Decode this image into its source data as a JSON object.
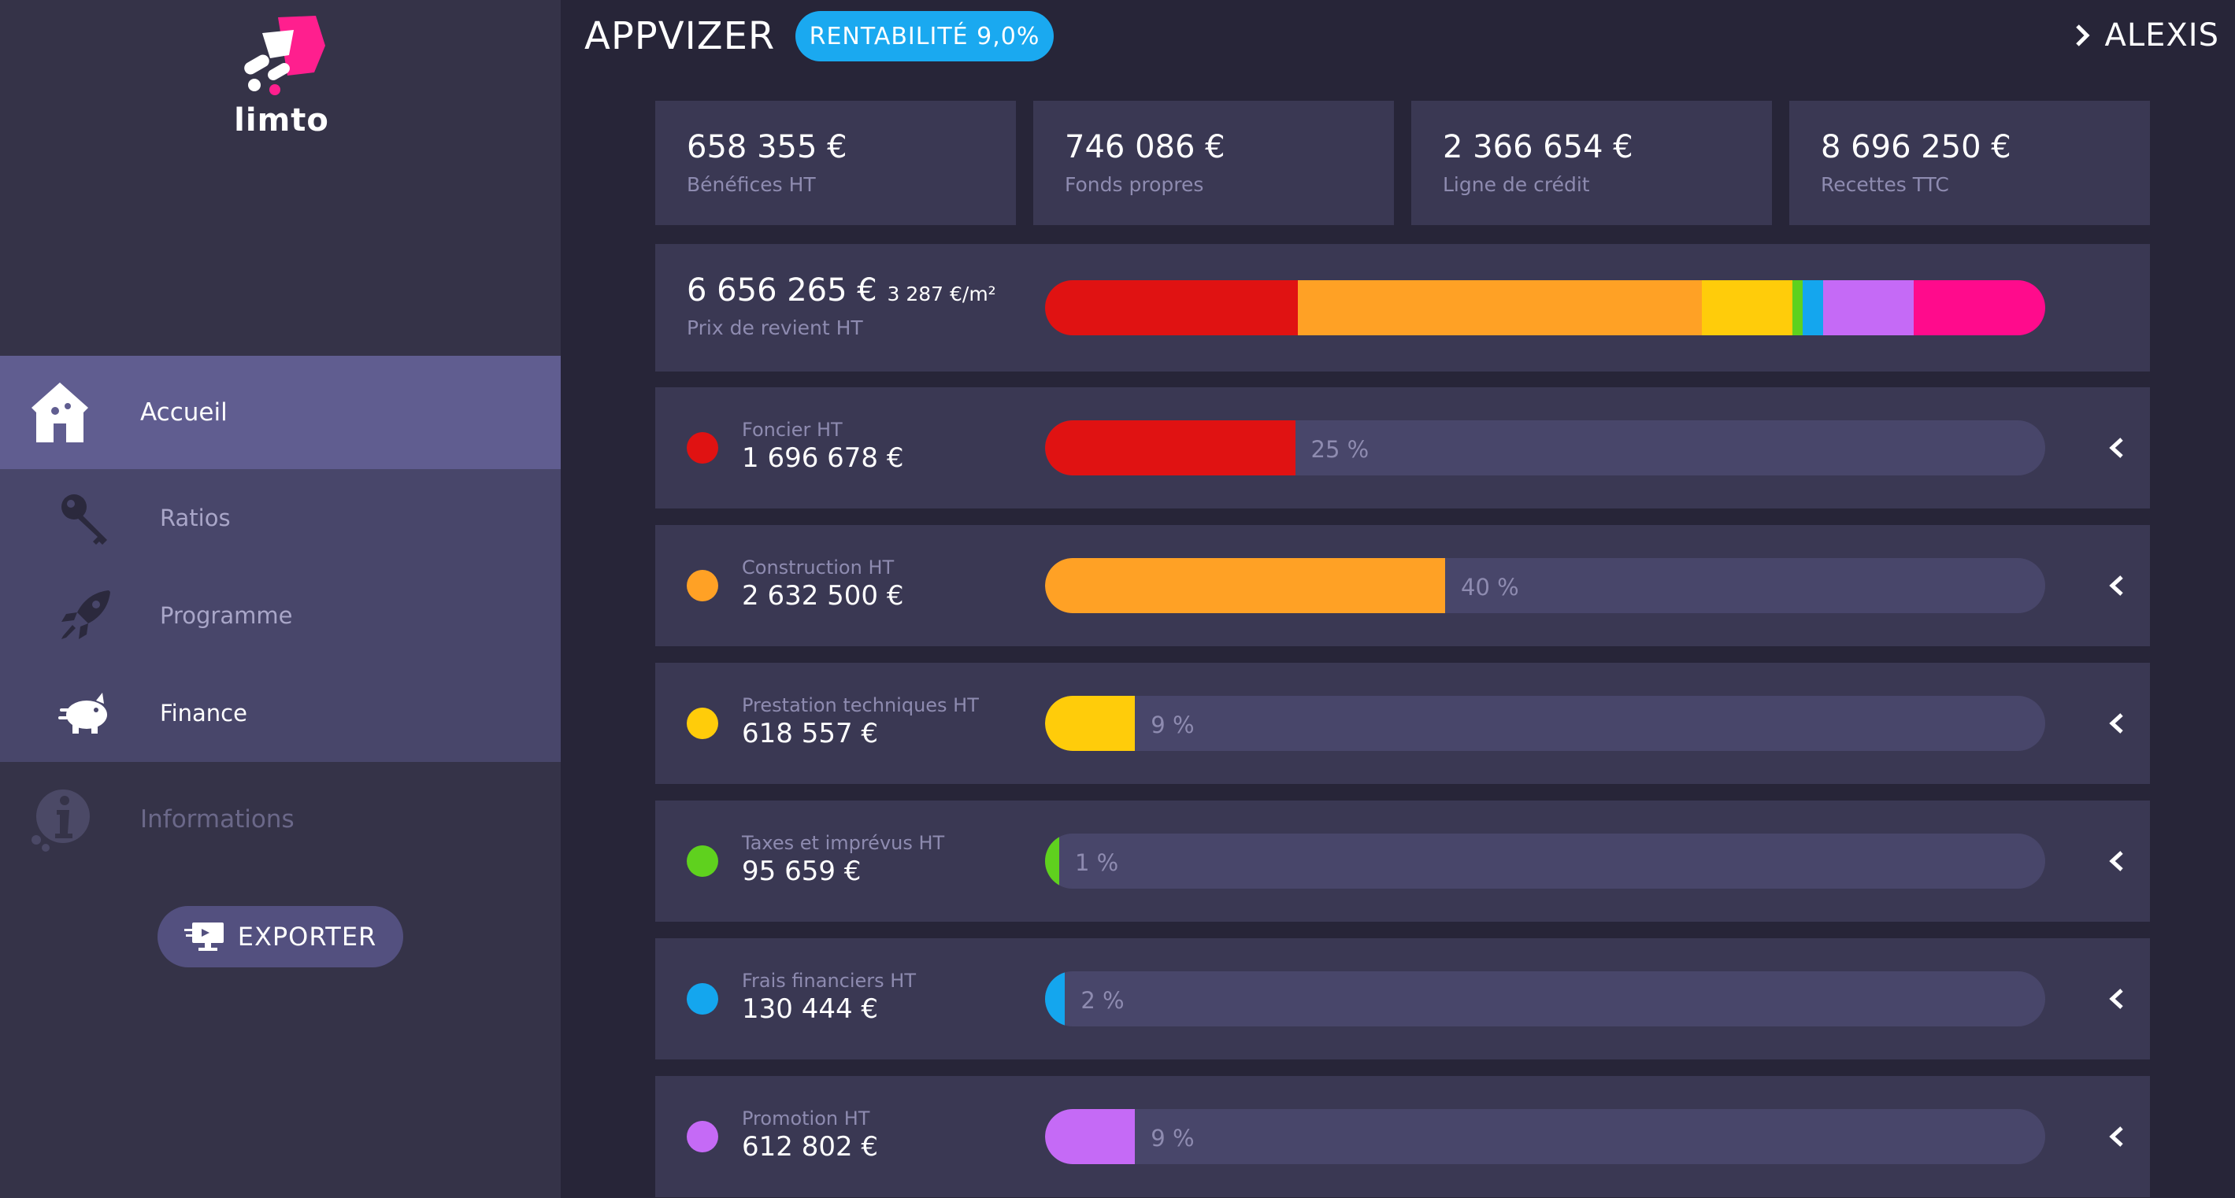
{
  "brand": {
    "logo_text": "limto"
  },
  "sidebar": {
    "items": [
      {
        "label": "Accueil",
        "icon": "home-icon"
      },
      {
        "label": "Ratios",
        "icon": "key-icon"
      },
      {
        "label": "Programme",
        "icon": "rocket-icon"
      },
      {
        "label": "Finance",
        "icon": "piggy-bank-icon"
      },
      {
        "label": "Informations",
        "icon": "info-icon"
      }
    ],
    "export_label": "EXPORTER"
  },
  "header": {
    "title": "APPVIZER",
    "badge": "RENTABILITÉ 9,0%",
    "user": "ALEXIS"
  },
  "kpis": [
    {
      "value": "658 355 €",
      "label": "Bénéfices HT"
    },
    {
      "value": "746 086 €",
      "label": "Fonds propres"
    },
    {
      "value": "2 366 654 €",
      "label": "Ligne de crédit"
    },
    {
      "value": "8 696 250 €",
      "label": "Recettes TTC"
    }
  ],
  "prix": {
    "value": "6 656 265 €",
    "per_m2": "3 287 €/m²",
    "label": "Prix de revient HT"
  },
  "chart_data": {
    "type": "bar",
    "categories": [
      "Foncier HT",
      "Construction HT",
      "Prestation techniques HT",
      "Taxes et imprévus HT",
      "Frais financiers HT",
      "Promotion HT",
      ""
    ],
    "values": [
      25,
      40,
      9,
      1,
      2,
      9,
      13
    ],
    "colors": [
      "#e01212",
      "#ffa125",
      "#ffcc0a",
      "#5fd11e",
      "#14a6ee",
      "#c56af6",
      "#ff0b8c"
    ]
  },
  "rows": [
    {
      "label": "Foncier HT",
      "value": "1 696 678 €",
      "pct": "25 %",
      "pct_value": 25,
      "color": "#e01212"
    },
    {
      "label": "Construction HT",
      "value": "2 632 500 €",
      "pct": "40 %",
      "pct_value": 40,
      "color": "#ffa125"
    },
    {
      "label": "Prestation techniques HT",
      "value": "618 557 €",
      "pct": "9 %",
      "pct_value": 9,
      "color": "#ffcc0a"
    },
    {
      "label": "Taxes et imprévus HT",
      "value": "95 659 €",
      "pct": "1 %",
      "pct_value": 1,
      "color": "#5fd11e"
    },
    {
      "label": "Frais financiers HT",
      "value": "130 444 €",
      "pct": "2 %",
      "pct_value": 2,
      "color": "#14a6ee"
    },
    {
      "label": "Promotion HT",
      "value": "612 802 €",
      "pct": "9 %",
      "pct_value": 9,
      "color": "#c56af6"
    }
  ]
}
